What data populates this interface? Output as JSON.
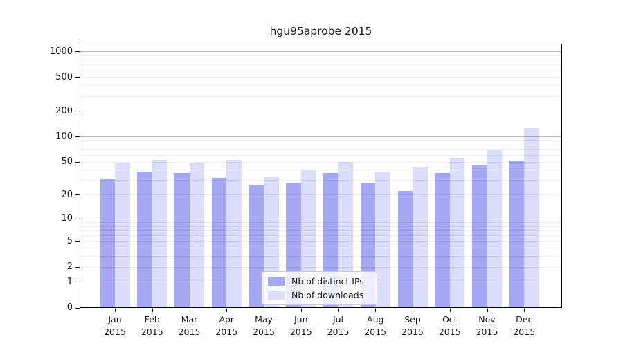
{
  "chart_data": {
    "type": "bar",
    "title": "hgu95aprobe 2015",
    "categories": [
      "Jan",
      "Feb",
      "Mar",
      "Apr",
      "May",
      "Jun",
      "Jul",
      "Aug",
      "Sep",
      "Oct",
      "Nov",
      "Dec"
    ],
    "year": "2015",
    "series": [
      {
        "name": "Nb of distinct IPs",
        "color": "#a5a8f3",
        "values": [
          31,
          38,
          37,
          32,
          26,
          28,
          37,
          28,
          22,
          37,
          45,
          52
        ]
      },
      {
        "name": "Nb of downloads",
        "color": "#dcddfa",
        "values": [
          49,
          53,
          48,
          53,
          33,
          40,
          50,
          38,
          44,
          56,
          69,
          126
        ]
      }
    ],
    "yscale": "log1p",
    "yticks": [
      0,
      1,
      2,
      5,
      10,
      20,
      50,
      100,
      200,
      500,
      1000
    ],
    "ylim": [
      0,
      1200
    ],
    "xlabel": "",
    "ylabel": "",
    "grid": true,
    "legend_position": "bottom-center",
    "colors": {
      "grid_major": "rgba(0,0,0,0.28)",
      "grid_minor": "rgba(0,0,0,0.07)",
      "spine": "#000000",
      "background": "#ffffff"
    }
  }
}
